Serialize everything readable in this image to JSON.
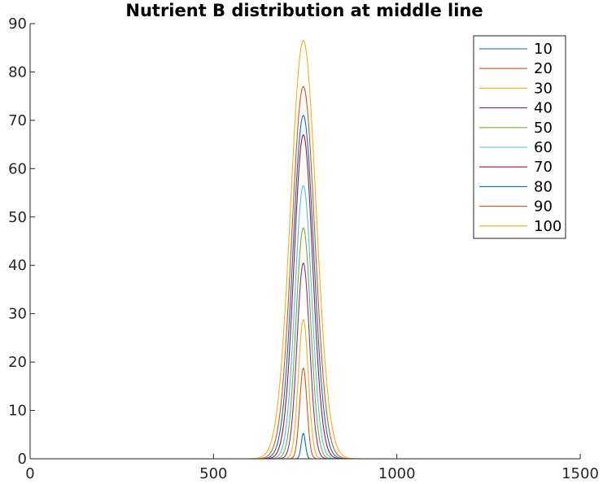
{
  "chart_data": {
    "type": "line",
    "title": "Nutrient B distribution at middle line",
    "xlabel": "",
    "ylabel": "",
    "xlim": [
      0,
      1500
    ],
    "ylim": [
      0,
      90
    ],
    "xticks": [
      0,
      500,
      1000,
      1500
    ],
    "yticks": [
      0,
      10,
      20,
      30,
      40,
      50,
      60,
      70,
      80,
      90
    ],
    "grid": false,
    "legend_position": "top-right",
    "curve_center_x": 745,
    "series": [
      {
        "name": "10",
        "color": "#0072BD",
        "peak": 5.3,
        "width": 8
      },
      {
        "name": "20",
        "color": "#D95319",
        "peak": 18.8,
        "width": 14
      },
      {
        "name": "30",
        "color": "#EDB120",
        "peak": 28.8,
        "width": 19
      },
      {
        "name": "40",
        "color": "#7E2F8E",
        "peak": 40.5,
        "width": 24
      },
      {
        "name": "50",
        "color": "#77AC30",
        "peak": 47.8,
        "width": 28
      },
      {
        "name": "60",
        "color": "#4DBEEE",
        "peak": 56.5,
        "width": 32
      },
      {
        "name": "70",
        "color": "#A2142F",
        "peak": 67.0,
        "width": 36
      },
      {
        "name": "80",
        "color": "#0072BD",
        "peak": 71.0,
        "width": 40
      },
      {
        "name": "90",
        "color": "#D95319",
        "peak": 77.0,
        "width": 44
      },
      {
        "name": "100",
        "color": "#EDB120",
        "peak": 86.5,
        "width": 49
      }
    ]
  }
}
